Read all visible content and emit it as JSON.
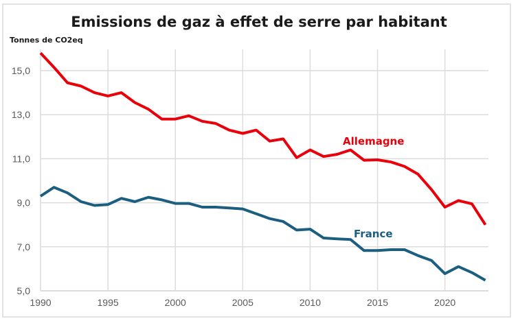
{
  "chart_data": {
    "type": "line",
    "title": "Emissions de gaz à effet de serre par habitant",
    "ylabel": "Tonnes de CO2eq",
    "xlabel": "",
    "xlim": [
      1990,
      2023
    ],
    "ylim": [
      5.0,
      15.8
    ],
    "x_ticks": [
      1990,
      1995,
      2000,
      2005,
      2010,
      2015,
      2020
    ],
    "x_tick_labels": [
      "1990",
      "1995",
      "2000",
      "2005",
      "2010",
      "2015",
      "2020"
    ],
    "y_ticks": [
      5.0,
      7.0,
      9.0,
      11.0,
      13.0,
      15.0
    ],
    "y_tick_labels": [
      "5,0",
      "7,0",
      "9,0",
      "11,0",
      "13,0",
      "15,0"
    ],
    "grid": true,
    "legend": "inline labels",
    "x": [
      1990,
      1991,
      1992,
      1993,
      1994,
      1995,
      1996,
      1997,
      1998,
      1999,
      2000,
      2001,
      2002,
      2003,
      2004,
      2005,
      2006,
      2007,
      2008,
      2009,
      2010,
      2011,
      2012,
      2013,
      2014,
      2015,
      2016,
      2017,
      2018,
      2019,
      2020,
      2021,
      2022,
      2023
    ],
    "series": [
      {
        "name": "Allemagne",
        "color": "#e8000b",
        "label_position": "above line near 2014",
        "values": [
          15.8,
          15.15,
          14.45,
          14.3,
          14.0,
          13.85,
          14.0,
          13.55,
          13.25,
          12.8,
          12.8,
          12.95,
          12.7,
          12.6,
          12.3,
          12.15,
          12.3,
          11.8,
          11.9,
          11.05,
          11.4,
          11.1,
          11.2,
          11.4,
          10.93,
          10.95,
          10.85,
          10.65,
          10.3,
          9.6,
          8.8,
          9.1,
          8.95,
          8.0
        ]
      },
      {
        "name": "France",
        "color": "#1b5e7f",
        "label_position": "above line near 2014",
        "values": [
          9.3,
          9.7,
          9.45,
          9.05,
          8.88,
          8.92,
          9.2,
          9.05,
          9.25,
          9.13,
          8.97,
          8.97,
          8.8,
          8.8,
          8.76,
          8.72,
          8.5,
          8.28,
          8.15,
          7.76,
          7.8,
          7.4,
          7.36,
          7.33,
          6.83,
          6.83,
          6.87,
          6.87,
          6.6,
          6.38,
          5.78,
          6.1,
          5.83,
          5.48
        ]
      }
    ]
  }
}
